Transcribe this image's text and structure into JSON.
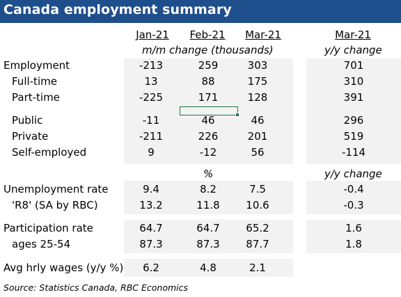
{
  "title": "Canada employment summary",
  "headers": {
    "months": [
      "Jan-21",
      "Feb-21",
      "Mar-21"
    ],
    "yy_month": "Mar-21",
    "sub_left": "m/m change (thousands)",
    "sub_right": "y/y change",
    "pct_label": "%",
    "yy_change_2": "y/y change"
  },
  "rows": {
    "employment": {
      "label": "Employment",
      "vals": [
        "-213",
        "259",
        "303"
      ],
      "yy": "701"
    },
    "fulltime": {
      "label": "Full-time",
      "vals": [
        "13",
        "88",
        "175"
      ],
      "yy": "310"
    },
    "parttime": {
      "label": "Part-time",
      "vals": [
        "-225",
        "171",
        "128"
      ],
      "yy": "391"
    },
    "public": {
      "label": "Public",
      "vals": [
        "-11",
        "46",
        "46"
      ],
      "yy": "296"
    },
    "private": {
      "label": "Private",
      "vals": [
        "-211",
        "226",
        "201"
      ],
      "yy": "519"
    },
    "selfemployed": {
      "label": "Self-employed",
      "vals": [
        "9",
        "-12",
        "56"
      ],
      "yy": "-114"
    },
    "unemp": {
      "label": "Unemployment rate",
      "vals": [
        "9.4",
        "8.2",
        "7.5"
      ],
      "yy": "-0.4"
    },
    "r8": {
      "label": "'R8' (SA by RBC)",
      "vals": [
        "13.2",
        "11.8",
        "10.6"
      ],
      "yy": "-0.3"
    },
    "partic": {
      "label": "Participation rate",
      "vals": [
        "64.7",
        "64.7",
        "65.2"
      ],
      "yy": "1.6"
    },
    "ages": {
      "label": "ages 25-54",
      "vals": [
        "87.3",
        "87.3",
        "87.7"
      ],
      "yy": "1.8"
    },
    "wages": {
      "label": "Avg hrly wages (y/y %)",
      "vals": [
        "6.2",
        "4.8",
        "2.1"
      ]
    }
  },
  "source": "Source:  Statistics Canada, RBC Economics",
  "colors": {
    "title_bg": "#1f4e8c",
    "shade": "#f2f2f2",
    "selection": "#217346"
  }
}
